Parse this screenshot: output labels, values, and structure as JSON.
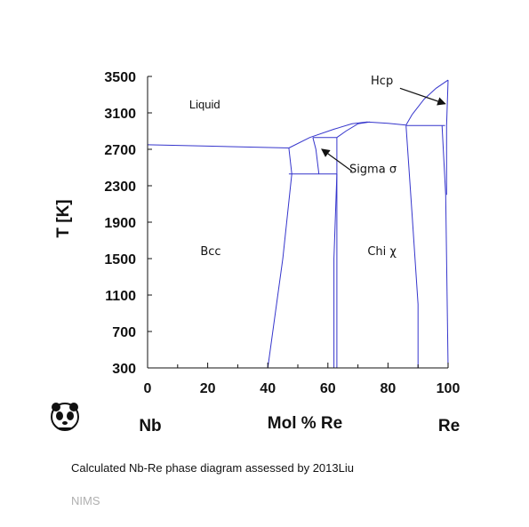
{
  "chart_data": {
    "type": "line",
    "title": "",
    "xlabel": "Mol % Re",
    "ylabel": "T [K]",
    "xlim": [
      0,
      100
    ],
    "ylim": [
      300,
      3500
    ],
    "x_ticks": [
      0,
      20,
      40,
      60,
      80,
      100
    ],
    "y_ticks": [
      300,
      700,
      1100,
      1500,
      1900,
      2300,
      2700,
      3100,
      3500
    ],
    "grid": false,
    "left_element": "Nb",
    "right_element": "Re",
    "regions": [
      {
        "label": "Liquid",
        "x": 19,
        "y": 3150
      },
      {
        "label": "Bcc",
        "x": 21,
        "y": 1540
      },
      {
        "label": "Chi χ",
        "x": 78,
        "y": 1540
      },
      {
        "label": "Hcp",
        "x": 78,
        "y": 3410
      },
      {
        "label": "Sigma σ",
        "x": 75,
        "y": 2440
      }
    ],
    "arrows": [
      {
        "from": [
          84,
          3370
        ],
        "to": [
          99,
          3200
        ]
      },
      {
        "from": [
          68,
          2460
        ],
        "to": [
          58,
          2700
        ]
      }
    ],
    "phase_boundaries": [
      {
        "name": "bcc-liquidus",
        "points": [
          [
            0,
            2750
          ],
          [
            20,
            2735
          ],
          [
            47,
            2715
          ]
        ]
      },
      {
        "name": "sigma-liquidus",
        "points": [
          [
            47,
            2715
          ],
          [
            54,
            2830
          ],
          [
            62,
            2920
          ],
          [
            68,
            2980
          ],
          [
            73,
            3000
          ],
          [
            80,
            2985
          ],
          [
            86,
            2965
          ]
        ]
      },
      {
        "name": "hcp-liquidus",
        "points": [
          [
            86,
            2965
          ],
          [
            88,
            3080
          ],
          [
            92,
            3250
          ],
          [
            96,
            3370
          ],
          [
            100,
            3460
          ]
        ]
      },
      {
        "name": "chi-liquidus-left",
        "points": [
          [
            63,
            2830
          ],
          [
            66,
            2900
          ],
          [
            70,
            2980
          ],
          [
            74,
            3000
          ]
        ]
      },
      {
        "name": "peritectic-sigma-top",
        "points": [
          [
            55,
            2830
          ],
          [
            63,
            2830
          ]
        ]
      },
      {
        "name": "peritectic-hcp",
        "points": [
          [
            86,
            2960
          ],
          [
            99,
            2960
          ]
        ]
      },
      {
        "name": "eutectoid-sigma-bcc",
        "points": [
          [
            47,
            2430
          ],
          [
            63,
            2430
          ]
        ]
      },
      {
        "name": "bcc-solvus",
        "points": [
          [
            47,
            2715
          ],
          [
            48,
            2430
          ],
          [
            45,
            1500
          ],
          [
            40,
            300
          ]
        ]
      },
      {
        "name": "sigma-left",
        "points": [
          [
            55,
            2830
          ],
          [
            56,
            2700
          ],
          [
            57,
            2430
          ]
        ]
      },
      {
        "name": "sigma-right",
        "points": [
          [
            63,
            2830
          ],
          [
            63,
            2430
          ],
          [
            62,
            1500
          ],
          [
            62,
            300
          ]
        ]
      },
      {
        "name": "chi-left",
        "points": [
          [
            63,
            2430
          ],
          [
            63,
            300
          ]
        ]
      },
      {
        "name": "chi-right",
        "points": [
          [
            86,
            2960
          ],
          [
            88,
            2000
          ],
          [
            90,
            1000
          ],
          [
            90,
            300
          ]
        ]
      },
      {
        "name": "hcp-solvus",
        "points": [
          [
            98,
            2960
          ],
          [
            99.2,
            2200
          ],
          [
            100,
            300
          ]
        ]
      },
      {
        "name": "re-solidus",
        "points": [
          [
            100,
            3460
          ],
          [
            99.5,
            2960
          ],
          [
            99.5,
            2200
          ]
        ]
      }
    ]
  },
  "caption": "Calculated Nb-Re phase diagram assessed by 2013Liu",
  "source": "NIMS",
  "logo": {
    "icon": "panda-logo-icon"
  },
  "colors": {
    "boundary": "#3535cc",
    "axis": "#111111"
  }
}
